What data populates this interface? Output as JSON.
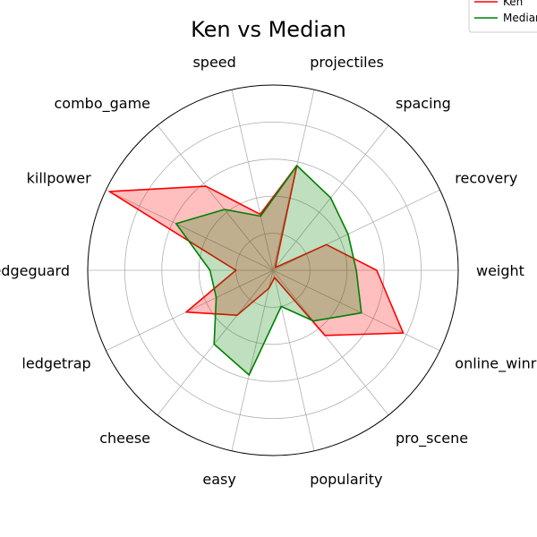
{
  "chart_data": {
    "type": "radar",
    "title": "Ken vs Median",
    "axes": [
      "weight",
      "recovery",
      "spacing",
      "projectiles",
      "speed",
      "combo_game",
      "killpower",
      "edgeguard",
      "ledgetrap",
      "cheese",
      "easy",
      "popularity",
      "pro_scene",
      "online_winrate"
    ],
    "rlim": [
      0,
      10
    ],
    "grid": true,
    "legend_position": "top-right",
    "series": [
      {
        "name": "Ken",
        "color": "#ff0000",
        "fill": "#ff0000",
        "values": [
          5.6,
          3.2,
          0.2,
          5.8,
          3.1,
          5.8,
          9.8,
          2.0,
          5.2,
          3.1,
          1.0,
          0.4,
          4.5,
          7.8
        ]
      },
      {
        "name": "Median",
        "color": "#008000",
        "fill": "#008000",
        "values": [
          4.5,
          4.5,
          5.0,
          5.8,
          3.0,
          4.2,
          5.8,
          3.4,
          3.4,
          5.1,
          5.8,
          2.0,
          3.5,
          5.3
        ]
      }
    ]
  }
}
